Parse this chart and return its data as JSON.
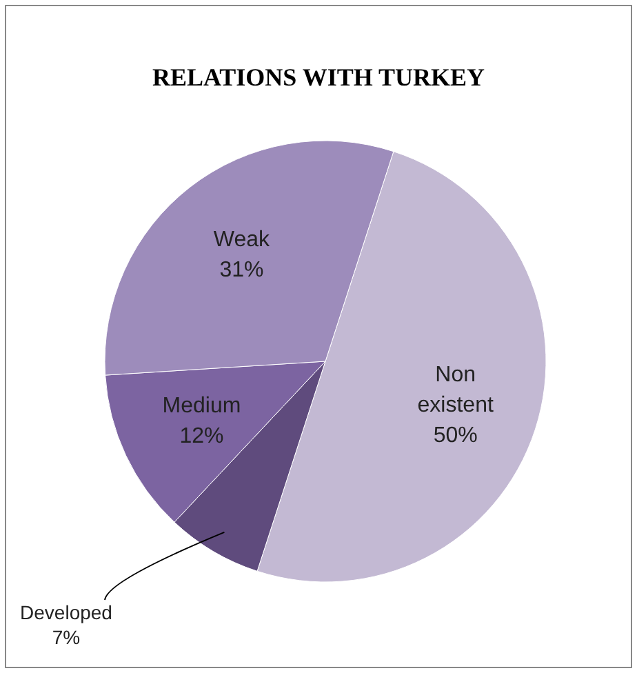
{
  "chart_data": {
    "type": "pie",
    "title": "RELATIONS WITH TURKEY",
    "categories": [
      "Non existent",
      "Developed",
      "Medium",
      "Weak"
    ],
    "values": [
      50,
      7,
      12,
      31
    ],
    "value_labels": [
      "50%",
      "7%",
      "12%",
      "31%"
    ],
    "colors": [
      "#c3b9d3",
      "#5f4b7d",
      "#7c64a1",
      "#9d8cbb"
    ]
  }
}
